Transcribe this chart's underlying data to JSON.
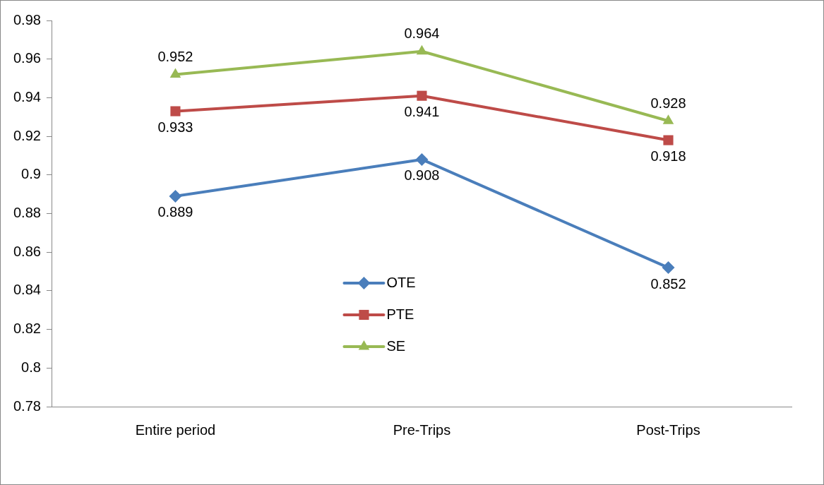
{
  "chart_data": {
    "type": "line",
    "categories": [
      "Entire period",
      "Pre-Trips",
      "Post-Trips"
    ],
    "series": [
      {
        "name": "OTE",
        "color": "#4a7ebb",
        "marker": "diamond",
        "values": [
          0.889,
          0.908,
          0.852
        ]
      },
      {
        "name": "PTE",
        "color": "#be4b48",
        "marker": "square",
        "values": [
          0.933,
          0.941,
          0.918
        ]
      },
      {
        "name": "SE",
        "color": "#98b954",
        "marker": "triangle",
        "values": [
          0.952,
          0.964,
          0.928
        ]
      }
    ],
    "ylim": [
      0.78,
      0.98
    ],
    "yticks": [
      0.78,
      0.8,
      0.82,
      0.84,
      0.86,
      0.88,
      0.9,
      0.92,
      0.94,
      0.96,
      0.98
    ],
    "grid": false,
    "legend": "bottom",
    "data_labels": true
  }
}
